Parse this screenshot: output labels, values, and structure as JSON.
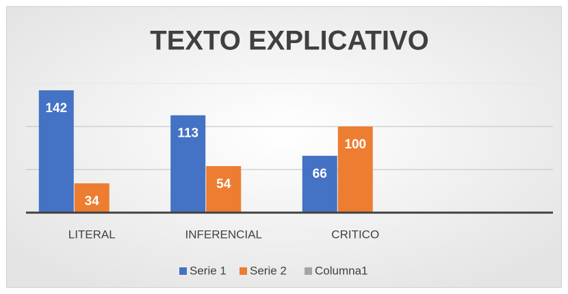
{
  "chart_data": {
    "type": "bar",
    "title": "TEXTO EXPLICATIVO",
    "categories": [
      "LITERAL",
      "INFERENCIAL",
      "CRITICO",
      null
    ],
    "series": [
      {
        "name": "Serie 1",
        "color": "#4472c4",
        "values": [
          142,
          113,
          66,
          null
        ]
      },
      {
        "name": "Serie 2",
        "color": "#ed7d31",
        "values": [
          34,
          54,
          100,
          null
        ]
      },
      {
        "name": "Columna1",
        "color": "#a5a5a5",
        "values": [
          null,
          null,
          null,
          null
        ]
      }
    ],
    "ylim": [
      0,
      150
    ],
    "yticks": [
      0,
      50,
      100,
      150
    ],
    "grid": true,
    "legend": "bottom"
  }
}
